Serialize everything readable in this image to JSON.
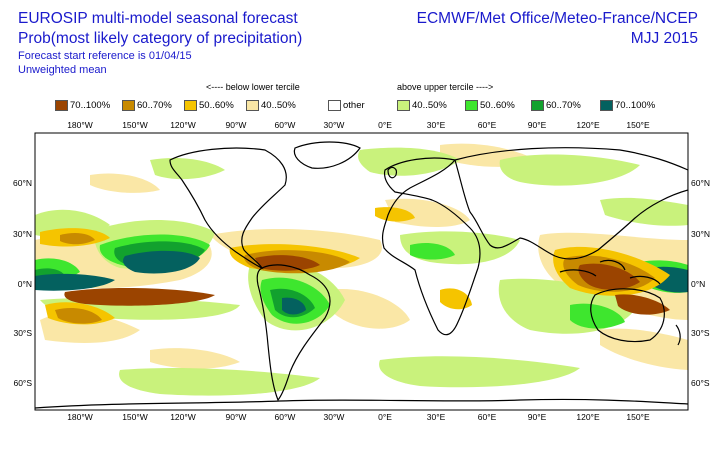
{
  "header": {
    "title_line1": "EUROSIP multi-model seasonal forecast",
    "title_line2": "Prob(most likely category of precipitation)",
    "start_reference": "Forecast start reference is 01/04/15",
    "mean_type": "Unweighted mean",
    "agencies": "ECMWF/Met Office/Meteo-France/NCEP",
    "season": "MJJ 2015"
  },
  "legend": {
    "below_caption": "<---- below lower tercile",
    "above_caption": "above upper tercile ---->",
    "items": [
      {
        "label": "70..100%",
        "color": "#9b4400"
      },
      {
        "label": "60..70%",
        "color": "#c88a00"
      },
      {
        "label": "50..60%",
        "color": "#f5c400"
      },
      {
        "label": "40..50%",
        "color": "#fae7a6"
      },
      {
        "label": "other",
        "color": "#ffffff"
      },
      {
        "label": "40..50%",
        "color": "#c9f27c"
      },
      {
        "label": "50..60%",
        "color": "#3ee62e"
      },
      {
        "label": "60..70%",
        "color": "#12a12e"
      },
      {
        "label": "70..100%",
        "color": "#04615f"
      }
    ]
  },
  "axes": {
    "lon_labels": [
      "180°W",
      "150°W",
      "120°W",
      "90°W",
      "60°W",
      "30°W",
      "0°E",
      "30°E",
      "60°E",
      "90°E",
      "120°E",
      "150°E"
    ],
    "lat_labels": [
      "60°N",
      "30°N",
      "0°N",
      "30°S",
      "60°S"
    ]
  }
}
